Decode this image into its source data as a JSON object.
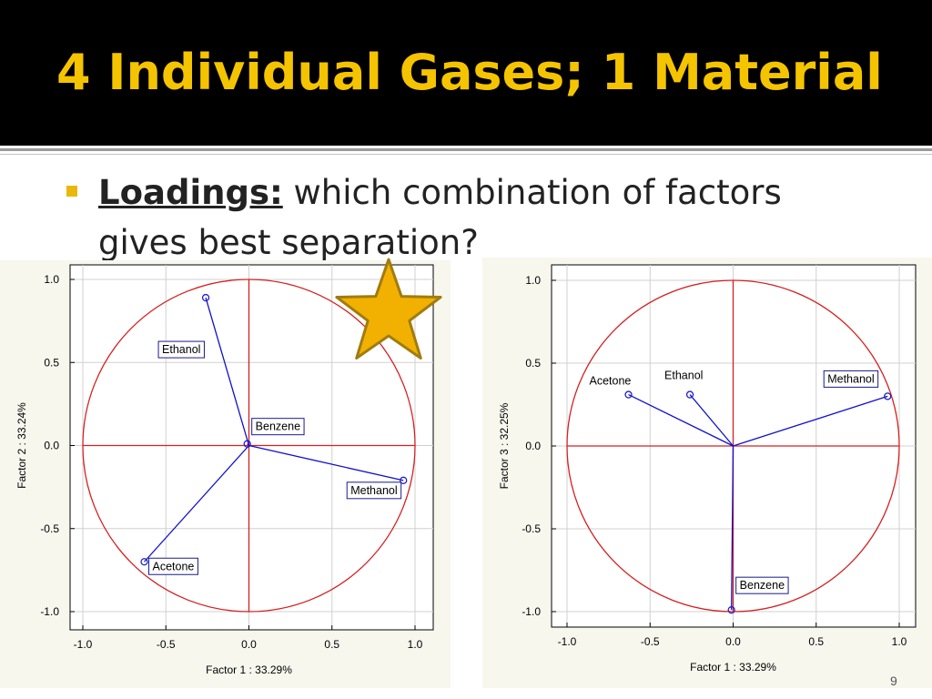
{
  "slide": {
    "title": "4 Individual Gases; 1 Material",
    "bullet_keyword": "Loadings:",
    "bullet_text": " which combination of factors gives best separation?",
    "page_number": "9",
    "colors": {
      "title": "#f5c400",
      "bullet": "#e8b90a",
      "star_fill": "#f2b100",
      "star_stroke": "#a07c10"
    },
    "star_icon": "star-icon"
  },
  "chart_data": [
    {
      "type": "scatter",
      "xlabel": "Factor 1 : 33.29%",
      "ylabel": "Factor 2 : 33.24%",
      "xlim": [
        -1.0,
        1.0
      ],
      "ylim": [
        -1.0,
        1.0
      ],
      "x_ticks": [
        "-1.0",
        "-0.5",
        "0.0",
        "0.5",
        "1.0"
      ],
      "y_ticks": [
        "1.0",
        "0.5",
        "0.0",
        "-0.5",
        "-1.0"
      ],
      "unit_circle": true,
      "grid": true,
      "colors": {
        "circle": "#d42020",
        "vector": "#1010cc",
        "point": "#2020cc"
      },
      "points": [
        {
          "label": "Ethanol",
          "x": -0.26,
          "y": 0.89
        },
        {
          "label": "Benzene",
          "x": -0.01,
          "y": 0.01
        },
        {
          "label": "Methanol",
          "x": 0.93,
          "y": -0.21
        },
        {
          "label": "Acetone",
          "x": -0.63,
          "y": -0.7
        }
      ]
    },
    {
      "type": "scatter",
      "xlabel": "Factor 1 : 33.29%",
      "ylabel": "Factor 3 : 32.25%",
      "xlim": [
        -1.0,
        1.0
      ],
      "ylim": [
        -1.0,
        1.0
      ],
      "x_ticks": [
        "-1.0",
        "-0.5",
        "0.0",
        "0.5",
        "1.0"
      ],
      "y_ticks": [
        "1.0",
        "0.5",
        "0.0",
        "-0.5",
        "-1.0"
      ],
      "unit_circle": true,
      "grid": true,
      "colors": {
        "circle": "#d42020",
        "vector": "#1010cc",
        "point": "#2020cc"
      },
      "points": [
        {
          "label": "Acetone",
          "x": -0.63,
          "y": 0.31
        },
        {
          "label": "Ethanol",
          "x": -0.26,
          "y": 0.31
        },
        {
          "label": "Methanol",
          "x": 0.93,
          "y": 0.3
        },
        {
          "label": "Benzene",
          "x": -0.01,
          "y": -0.99
        }
      ]
    }
  ]
}
